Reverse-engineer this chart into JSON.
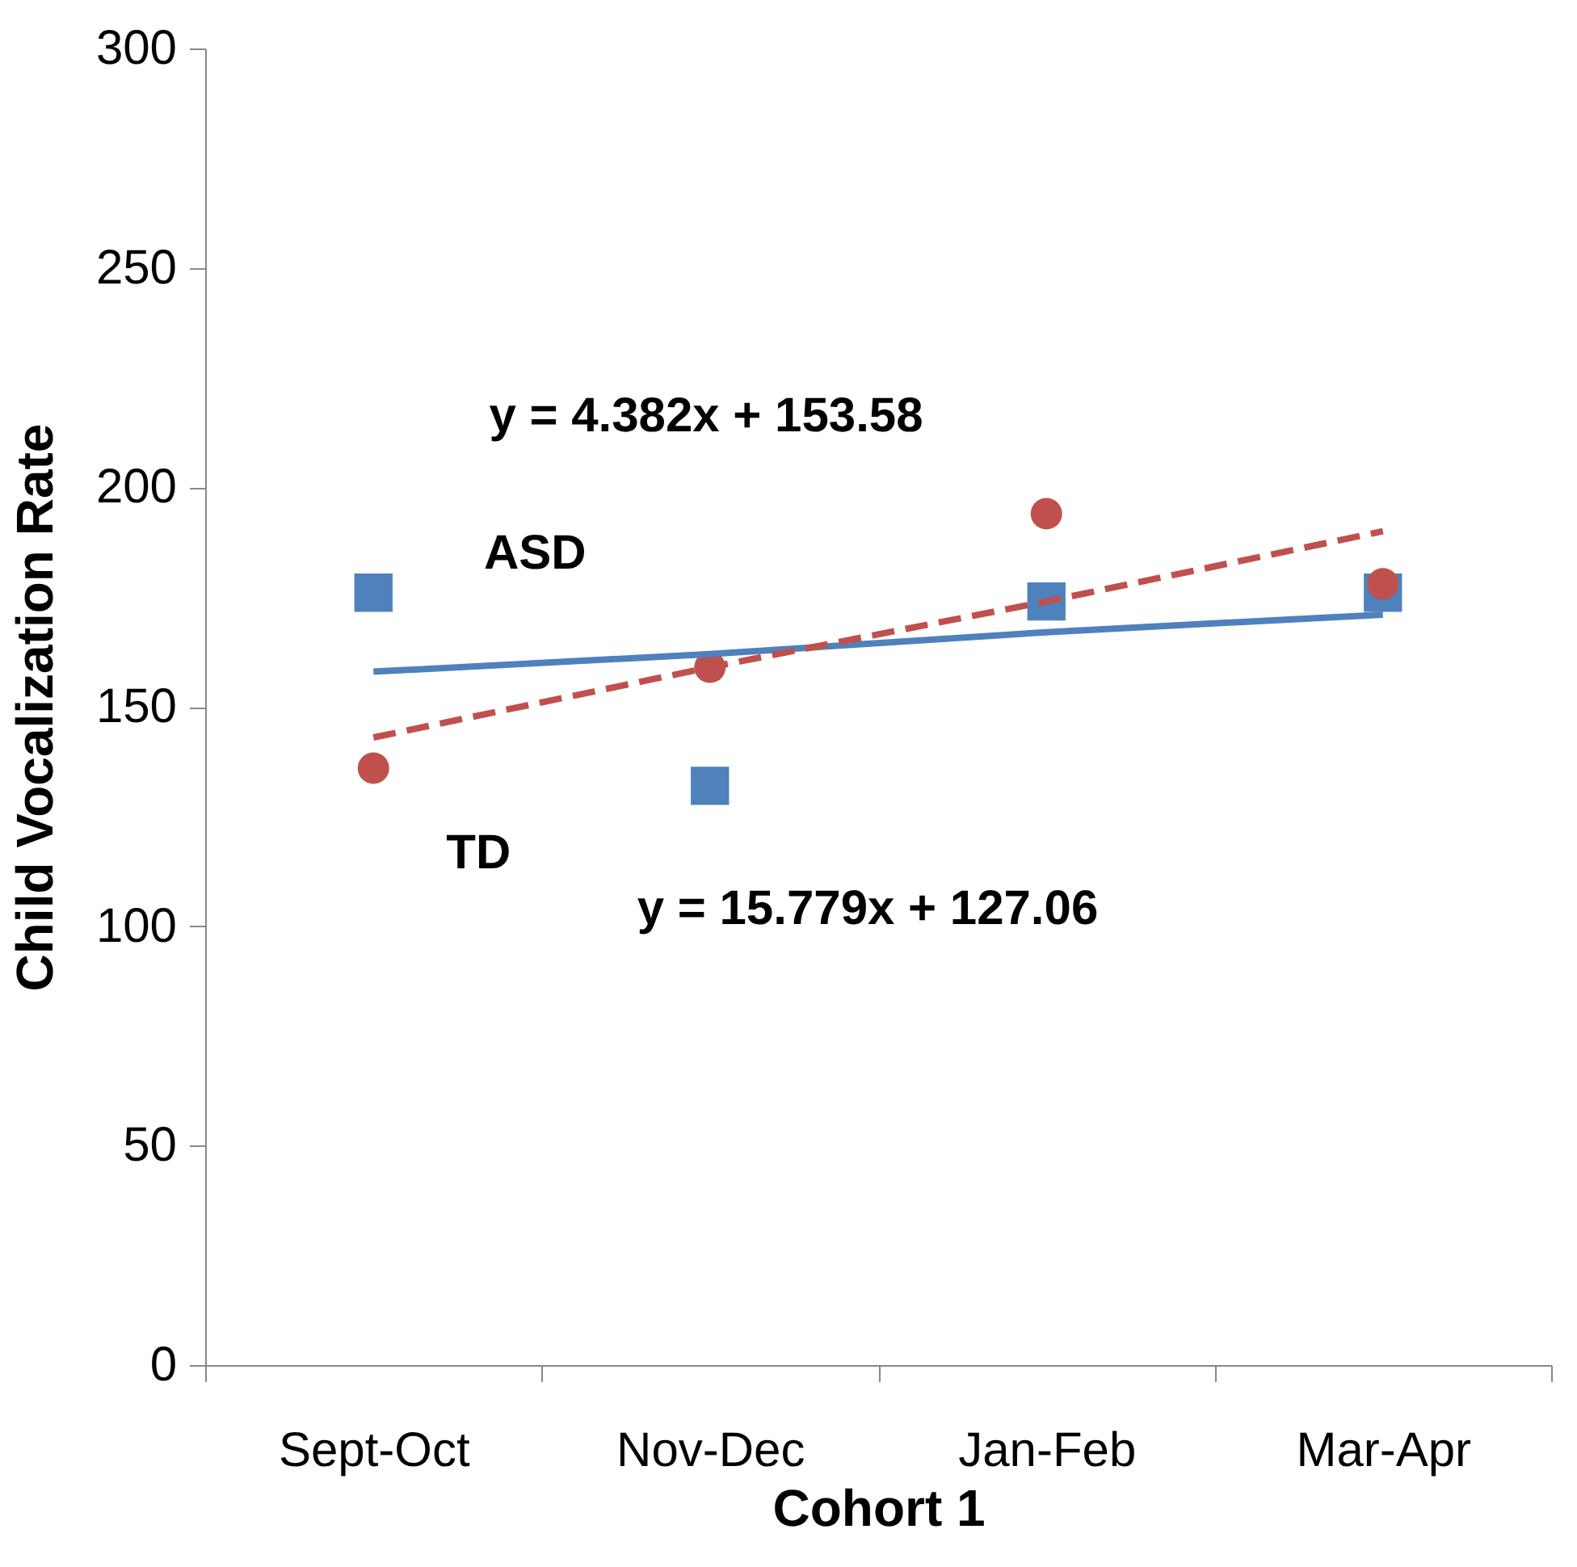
{
  "chart_data": {
    "type": "scatter",
    "xlabel": "Cohort 1",
    "ylabel": "Child  Vocalization Rate",
    "categories": [
      "Sept-Oct",
      "Nov-Dec",
      "Jan-Feb",
      "Mar-Apr"
    ],
    "series": [
      {
        "name": "ASD",
        "marker": "square",
        "color": "#4f81bd",
        "values": [
          176,
          132,
          174,
          176
        ]
      },
      {
        "name": "TD",
        "marker": "circle",
        "color": "#c0504d",
        "values": [
          136,
          159,
          194,
          178
        ]
      },
      {
        "type": "line",
        "line_style": "solid",
        "color": "#4f81bd",
        "values": [
          158,
          162,
          167,
          171
        ]
      },
      {
        "type": "line",
        "line_style": "dashed",
        "color": "#c0504d",
        "values": [
          143,
          159,
          174,
          190
        ]
      }
    ],
    "annotations": [
      "y = 4.382x + 153.58",
      "y = 15.779x + 127.06"
    ],
    "ylim": [
      0,
      300
    ],
    "yticks": [
      0,
      50,
      100,
      150,
      200,
      250,
      300
    ],
    "grid": false
  }
}
